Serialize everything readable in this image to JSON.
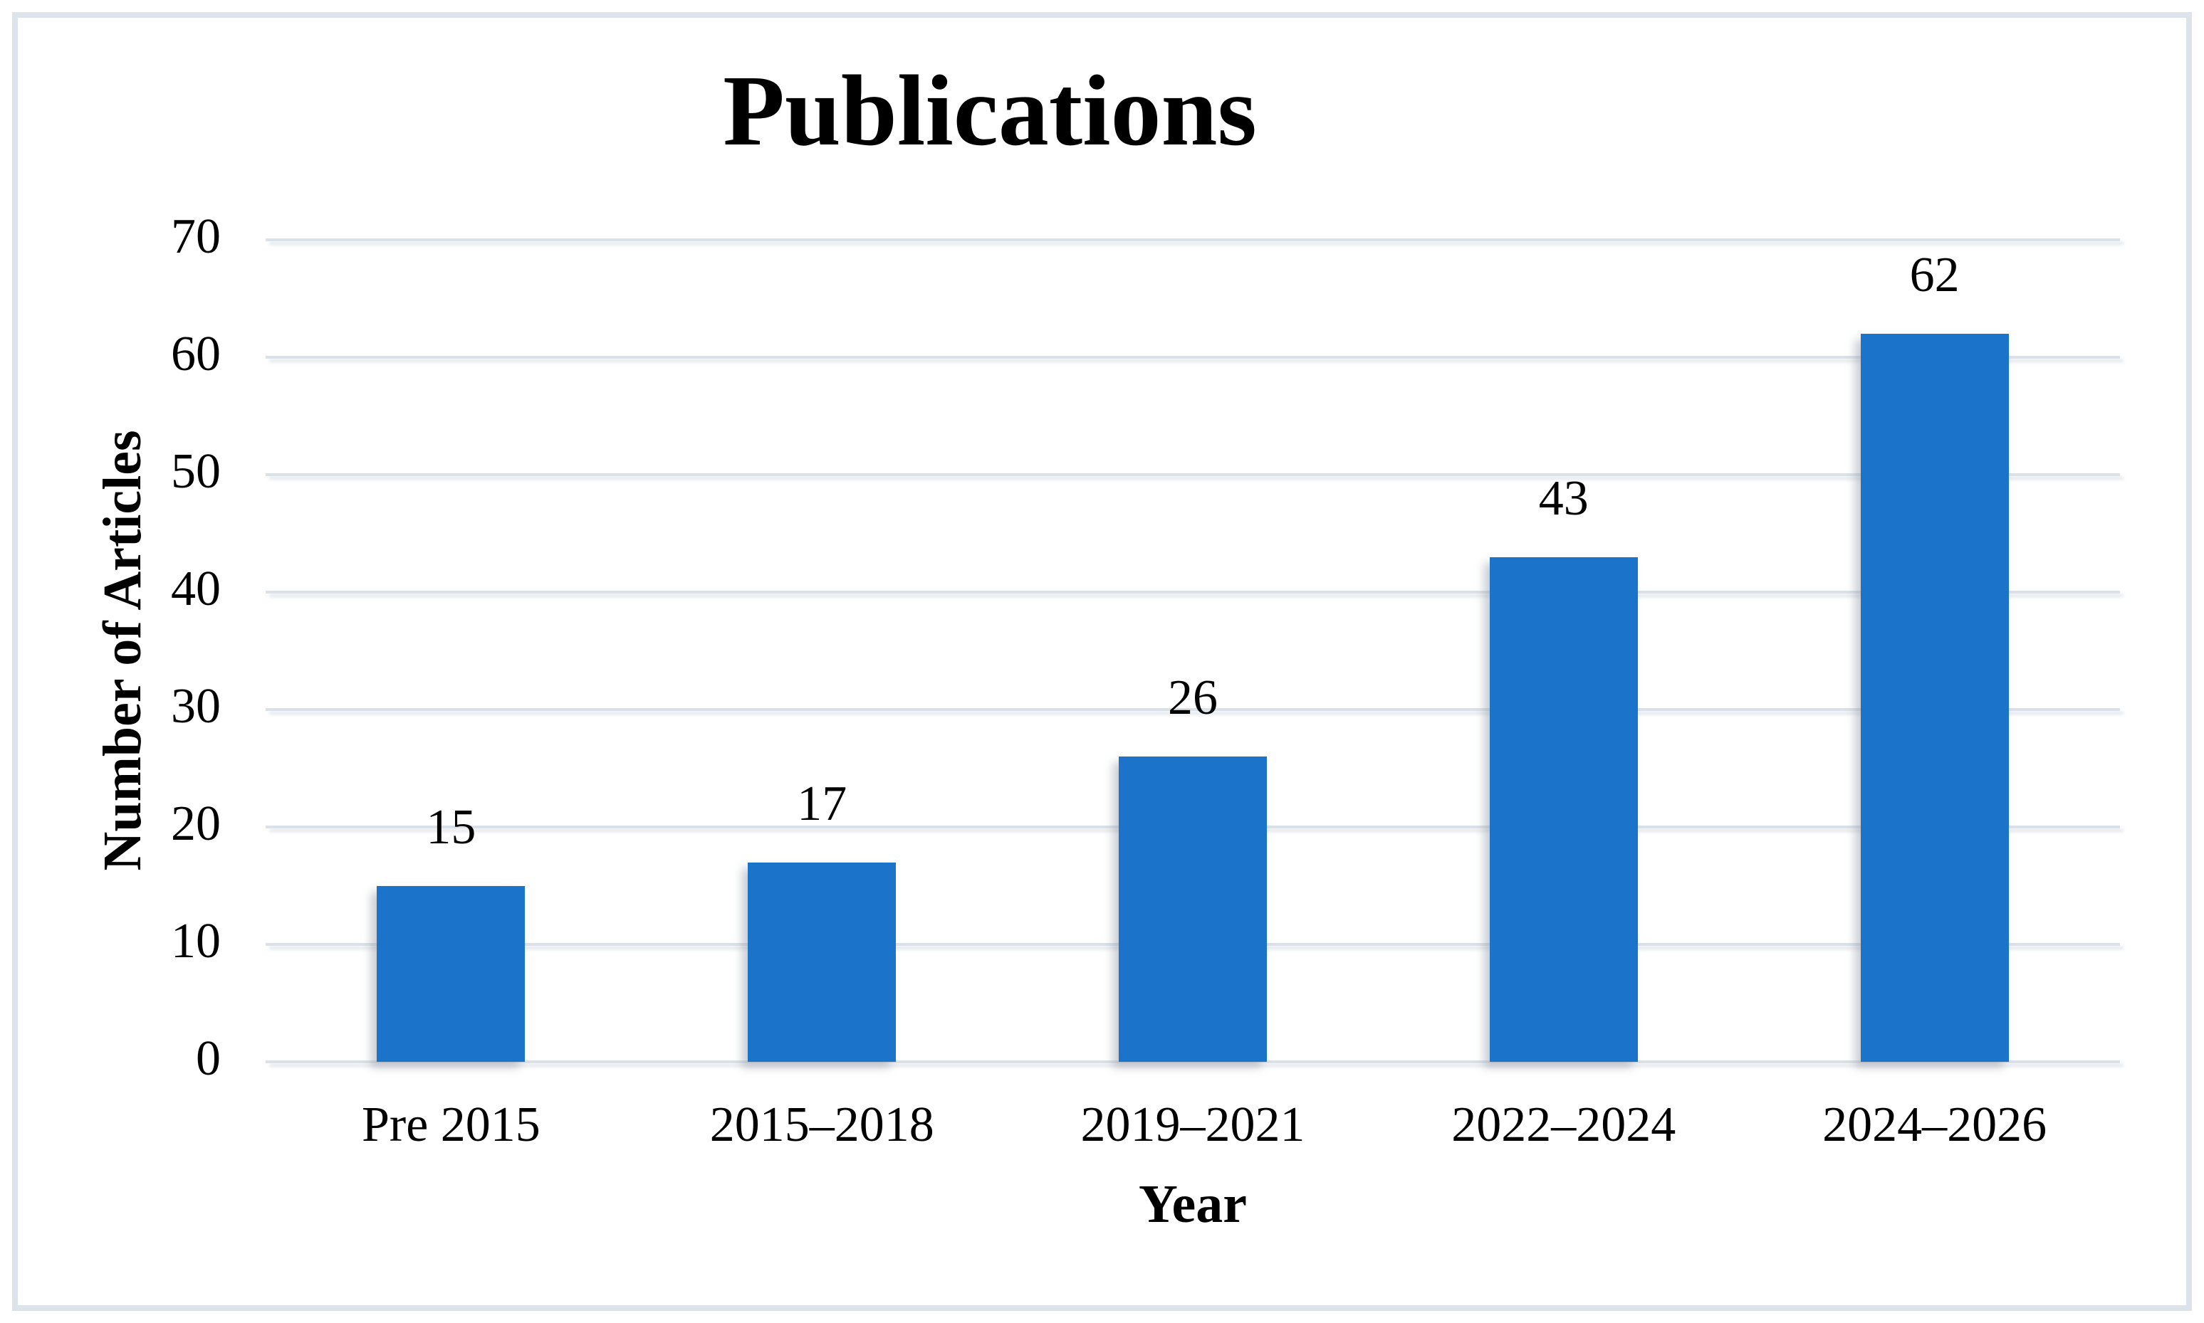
{
  "chart_data": {
    "type": "bar",
    "title": "Publications",
    "xlabel": "Year",
    "ylabel": "Number of Articles",
    "categories": [
      "Pre 2015",
      "2015–2018",
      "2019–2021",
      "2022–2024",
      "2024–2026"
    ],
    "values": [
      15,
      17,
      26,
      43,
      62
    ],
    "data_labels": [
      "15",
      "17",
      "26",
      "43",
      "62"
    ],
    "yticks": [
      0,
      10,
      20,
      30,
      40,
      50,
      60,
      70
    ],
    "ylim": [
      0,
      70
    ],
    "grid": true,
    "legend": "none",
    "bar_color": "#1C74CA",
    "gridline_color": "#DAE1E9",
    "frame_border_color": "#DDE3EA",
    "text_color": "#000000"
  }
}
